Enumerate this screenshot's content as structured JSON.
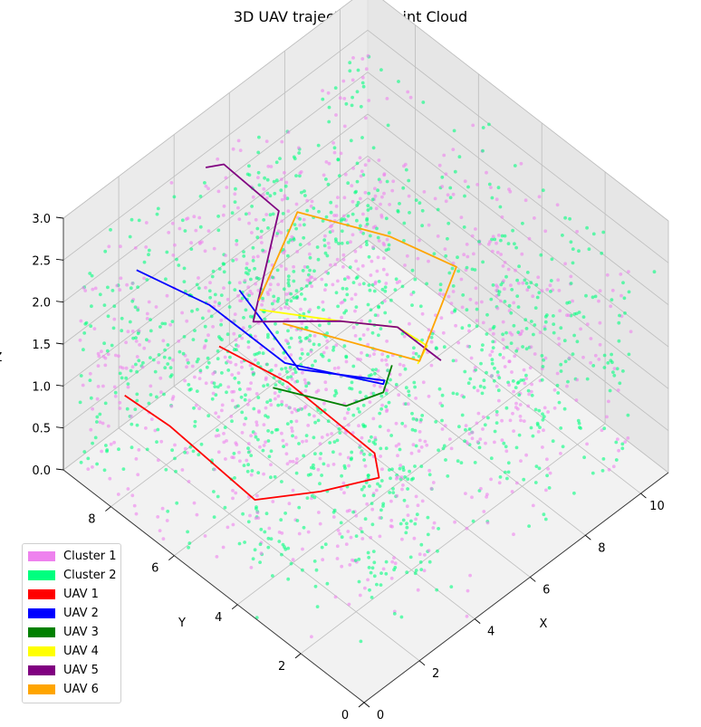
{
  "chart_data": {
    "type": "scatter",
    "title": "3D UAV trajectory in Point Cloud",
    "projection": "3d",
    "xlabel": "X",
    "ylabel": "Y",
    "zlabel": "Z",
    "xlim": [
      0,
      11
    ],
    "ylim": [
      0,
      9.5
    ],
    "zlim": [
      0,
      3
    ],
    "x_ticks": [
      "0",
      "2",
      "4",
      "6",
      "8",
      "10"
    ],
    "y_ticks": [
      "0",
      "2",
      "4",
      "6",
      "8"
    ],
    "z_ticks": [
      "0.0",
      "0.5",
      "1.0",
      "1.5",
      "2.0",
      "2.5",
      "3.0"
    ],
    "grid": true,
    "legend_position": "lower-left",
    "legend": [
      {
        "label": "Cluster 1",
        "color": "#ee82ee"
      },
      {
        "label": "Cluster 2",
        "color": "#00ff7f"
      },
      {
        "label": "UAV 1",
        "color": "#ff0000"
      },
      {
        "label": "UAV 2",
        "color": "#0000ff"
      },
      {
        "label": "UAV 3",
        "color": "#008000"
      },
      {
        "label": "UAV 4",
        "color": "#ffff00"
      },
      {
        "label": "UAV 5",
        "color": "#800080"
      },
      {
        "label": "UAV 6",
        "color": "#ffa500"
      }
    ],
    "point_cloud": {
      "description": "Point cloud of building walls and structures, split into two clusters",
      "clusters": [
        {
          "name": "Cluster 1",
          "color": "#ee82ee"
        },
        {
          "name": "Cluster 2",
          "color": "#00ff7f"
        }
      ]
    },
    "series": [
      {
        "name": "UAV 1",
        "color": "#ff0000",
        "points": [
          [
            0.5,
            8.0,
            1.2
          ],
          [
            1.0,
            7.0,
            1.0
          ],
          [
            2.0,
            5.2,
            0.4
          ],
          [
            3.0,
            4.0,
            0.6
          ],
          [
            4.2,
            3.2,
            0.7
          ],
          [
            4.5,
            3.6,
            0.8
          ],
          [
            3.2,
            5.2,
            1.5
          ],
          [
            2.2,
            6.5,
            1.8
          ]
        ]
      },
      {
        "name": "UAV 2",
        "color": "#0000ff",
        "points": [
          [
            1.5,
            8.5,
            2.3
          ],
          [
            3.0,
            7.5,
            1.8
          ],
          [
            4.0,
            6.0,
            1.3
          ],
          [
            5.5,
            4.2,
            1.2
          ],
          [
            6.0,
            4.6,
            1.0
          ],
          [
            4.5,
            6.0,
            1.1
          ],
          [
            3.5,
            7.0,
            2.0
          ]
        ]
      },
      {
        "name": "UAV 3",
        "color": "#008000",
        "points": [
          [
            3.0,
            5.5,
            1.4
          ],
          [
            4.5,
            4.5,
            1.1
          ],
          [
            5.5,
            4.2,
            1.1
          ],
          [
            6.5,
            4.8,
            1.0
          ]
        ]
      },
      {
        "name": "UAV 4",
        "color": "#ffff00",
        "points": [
          [
            4.0,
            6.8,
            1.7
          ],
          [
            6.0,
            6.0,
            1.3
          ],
          [
            7.5,
            5.5,
            1.0
          ],
          [
            8.0,
            5.0,
            0.8
          ],
          [
            7.2,
            4.6,
            0.9
          ]
        ]
      },
      {
        "name": "UAV 5",
        "color": "#800080",
        "points": [
          [
            4.0,
            8.5,
            2.9
          ],
          [
            5.0,
            8.8,
            2.6
          ],
          [
            5.5,
            7.5,
            2.3
          ],
          [
            4.0,
            7.0,
            1.5
          ],
          [
            6.0,
            6.0,
            1.3
          ],
          [
            7.5,
            5.5,
            1.0
          ],
          [
            8.5,
            5.0,
            0.5
          ]
        ]
      },
      {
        "name": "UAV 6",
        "color": "#ffa500",
        "points": [
          [
            4.2,
            7.0,
            1.7
          ],
          [
            7.2,
            8.4,
            1.6
          ],
          [
            9.5,
            7.5,
            1.0
          ],
          [
            10.2,
            6.0,
            0.9
          ],
          [
            7.5,
            4.8,
            0.8
          ],
          [
            4.5,
            6.5,
            1.5
          ]
        ]
      }
    ]
  }
}
